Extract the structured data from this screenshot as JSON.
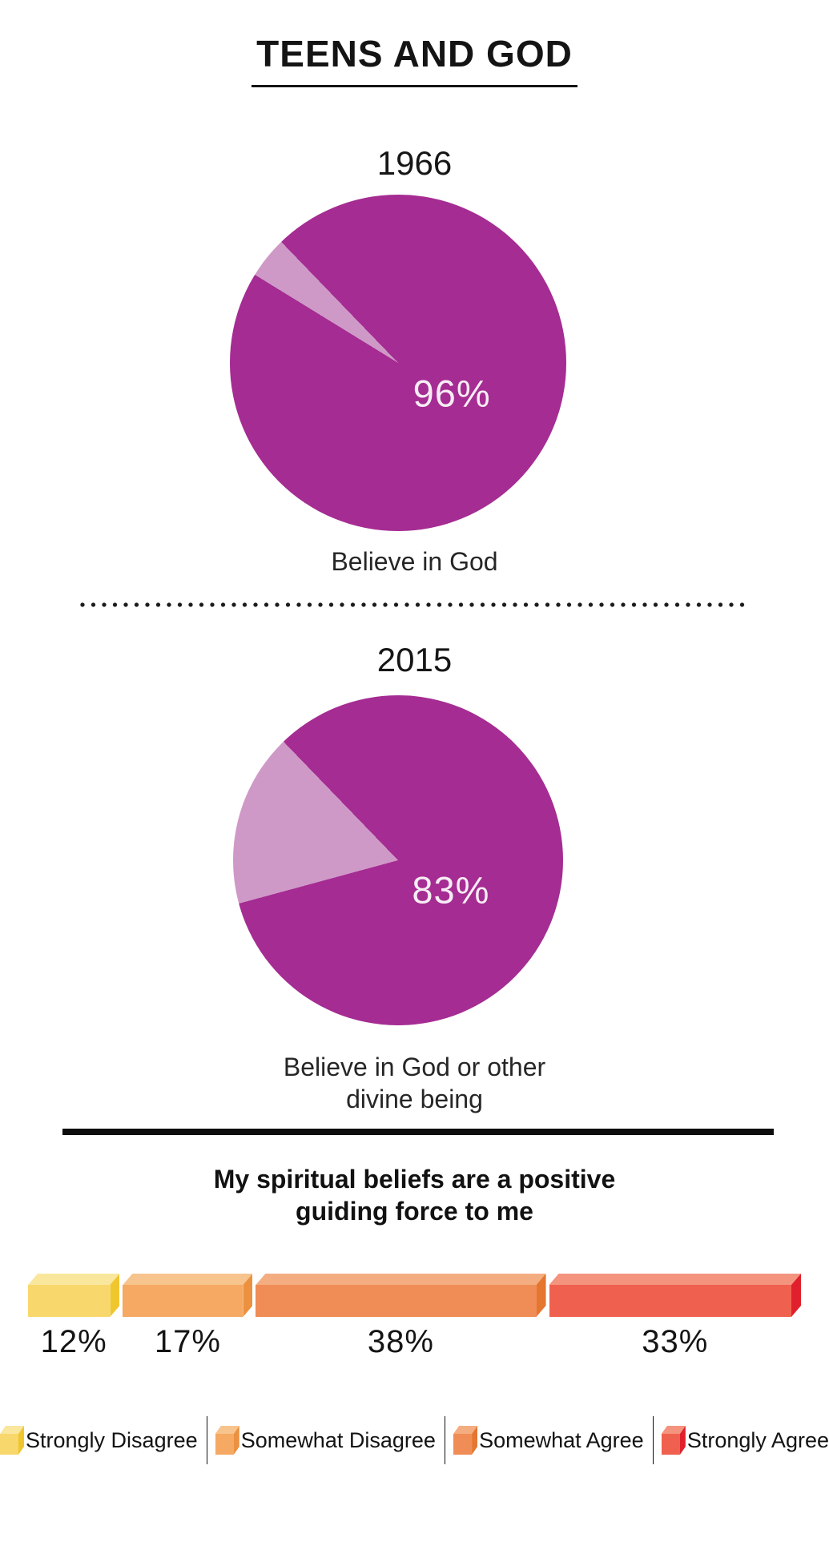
{
  "title": "TEENS AND GOD",
  "chart_data": [
    {
      "type": "pie",
      "title": "1966",
      "caption": "Believe in God",
      "caption_lines": [
        "Believe in God"
      ],
      "value_label": "96%",
      "slices": [
        {
          "label": "Believe in God",
          "value": 96
        },
        {
          "label": "",
          "value": 4
        }
      ],
      "start_angle_deg": 316,
      "colors": {
        "main": "#A52C92",
        "light": "#CF99C7",
        "value_text": "#F6EDF4"
      }
    },
    {
      "type": "pie",
      "title": "2015",
      "caption": "Believe in God or other divine being",
      "caption_lines": [
        "Believe in God or other",
        "divine being"
      ],
      "value_label": "83%",
      "slices": [
        {
          "label": "Believe in God or other divine being",
          "value": 83
        },
        {
          "label": "",
          "value": 17
        }
      ],
      "start_angle_deg": 316,
      "colors": {
        "main": "#A52C92",
        "light": "#CF99C7",
        "value_text": "#F6EDF4"
      }
    },
    {
      "type": "bar",
      "title": "My spiritual beliefs are a positive guiding force to me",
      "title_lines": [
        "My spiritual beliefs are a positive",
        "guiding force to me"
      ],
      "categories": [
        "Strongly Disagree",
        "Somewhat Disagree",
        "Somewhat Agree",
        "Strongly Agree"
      ],
      "values": [
        12,
        17,
        38,
        33
      ],
      "labels": [
        "12%",
        "17%",
        "38%",
        "33%"
      ],
      "legend_position": "bottom",
      "segment_colors": [
        {
          "front": "#F8D76C",
          "top": "#FAE79E",
          "side": "#F0C62F"
        },
        {
          "front": "#F5A962",
          "top": "#F8C48D",
          "side": "#EC9140"
        },
        {
          "front": "#F08C55",
          "top": "#F4AD80",
          "side": "#E4762F"
        },
        {
          "front": "#EF614E",
          "top": "#F4947F",
          "side": "#E0202D"
        }
      ]
    }
  ]
}
